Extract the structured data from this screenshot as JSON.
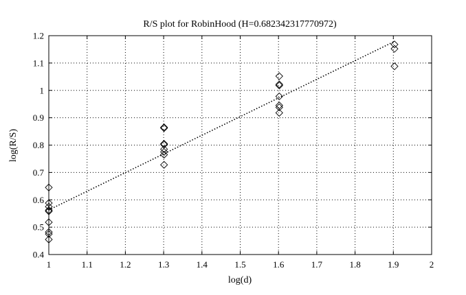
{
  "chart_data": {
    "type": "scatter",
    "title": "R/S plot for RobinHood (H=0.682342317770972)",
    "xlabel": "log(d)",
    "ylabel": "log(R/S)",
    "xlim": [
      1,
      2
    ],
    "ylim": [
      0.4,
      1.2
    ],
    "x_ticks": [
      "1",
      "1.1",
      "1.2",
      "1.3",
      "1.4",
      "1.5",
      "1.6",
      "1.7",
      "1.8",
      "1.9",
      "2"
    ],
    "y_ticks": [
      "0.4",
      "0.5",
      "0.6",
      "0.7",
      "0.8",
      "0.9",
      "1",
      "1.1",
      "1.2"
    ],
    "grid": true,
    "series": [
      {
        "marker": "diamond",
        "points": [
          [
            1.0,
            0.645
          ],
          [
            1.0,
            0.588
          ],
          [
            1.0,
            0.575
          ],
          [
            1.0,
            0.562
          ],
          [
            1.0,
            0.558
          ],
          [
            1.0,
            0.518
          ],
          [
            1.0,
            0.482
          ],
          [
            1.0,
            0.475
          ],
          [
            1.0,
            0.455
          ],
          [
            1.301,
            0.865
          ],
          [
            1.301,
            0.862
          ],
          [
            1.301,
            0.805
          ],
          [
            1.301,
            0.802
          ],
          [
            1.301,
            0.785
          ],
          [
            1.301,
            0.775
          ],
          [
            1.301,
            0.765
          ],
          [
            1.301,
            0.728
          ],
          [
            1.602,
            1.052
          ],
          [
            1.602,
            1.022
          ],
          [
            1.602,
            1.018
          ],
          [
            1.602,
            0.978
          ],
          [
            1.602,
            0.945
          ],
          [
            1.602,
            0.938
          ],
          [
            1.602,
            0.918
          ],
          [
            1.903,
            1.168
          ],
          [
            1.903,
            1.152
          ],
          [
            1.903,
            1.088
          ]
        ]
      },
      {
        "style": "dotted-line",
        "points": [
          [
            1.0,
            0.563
          ],
          [
            1.903,
            1.179
          ]
        ]
      }
    ]
  }
}
